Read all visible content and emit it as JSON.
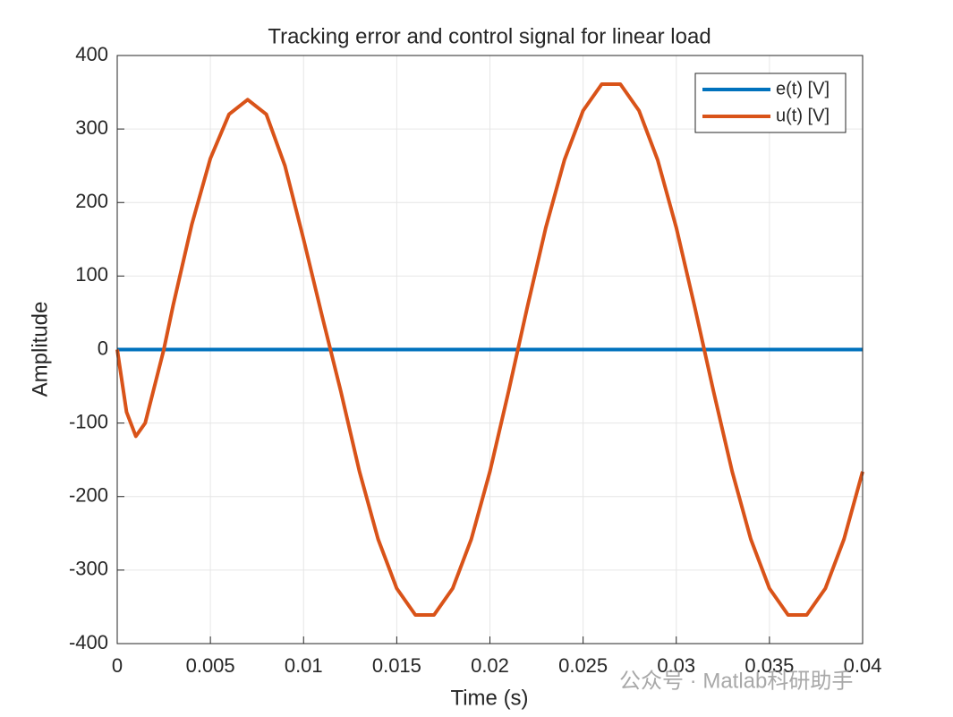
{
  "chart_data": {
    "type": "line",
    "title": "Tracking error and control signal for linear load",
    "xlabel": "Time (s)",
    "ylabel": "Amplitude",
    "x": [
      0,
      0.0005,
      0.001,
      0.0015,
      0.002,
      0.0025,
      0.003,
      0.004,
      0.005,
      0.006,
      0.007,
      0.008,
      0.009,
      0.01,
      0.011,
      0.012,
      0.013,
      0.014,
      0.015,
      0.016,
      0.017,
      0.018,
      0.019,
      0.02,
      0.021,
      0.022,
      0.023,
      0.024,
      0.025,
      0.026,
      0.027,
      0.028,
      0.029,
      0.03,
      0.031,
      0.032,
      0.033,
      0.034,
      0.035,
      0.036,
      0.037,
      0.038,
      0.039,
      0.04
    ],
    "series": [
      {
        "name": "e(t) [V]",
        "color": "#0072bd",
        "values": [
          0,
          0,
          0,
          0,
          0,
          0,
          0,
          0,
          0,
          0,
          0,
          0,
          0,
          0,
          0,
          0,
          0,
          0,
          0,
          0,
          0,
          0,
          0,
          0,
          0,
          0,
          0,
          0,
          0,
          0,
          0,
          0,
          0,
          0,
          0,
          0,
          0,
          0,
          0,
          0,
          0,
          0,
          0,
          0
        ]
      },
      {
        "name": "u(t) [V]",
        "color": "#d95319",
        "values": [
          0,
          -85,
          -118,
          -100,
          -50,
          0,
          60,
          170,
          260,
          320,
          340,
          320,
          250,
          150,
          45,
          -57,
          -166,
          -258,
          -325,
          -361,
          -361,
          -325,
          -258,
          -166,
          -57,
          57,
          166,
          258,
          325,
          361,
          361,
          325,
          258,
          166,
          57,
          -57,
          -166,
          -258,
          -325,
          -361,
          -361,
          -325,
          -258,
          -166
        ]
      }
    ],
    "xlim": [
      0,
      0.04
    ],
    "xticks": [
      0,
      0.005,
      0.01,
      0.015,
      0.02,
      0.025,
      0.03,
      0.035,
      0.04
    ],
    "ylim": [
      -400,
      400
    ],
    "yticks": [
      -400,
      -300,
      -200,
      -100,
      0,
      100,
      200,
      300,
      400
    ],
    "grid": true,
    "legend": "northeast",
    "watermark": "公众号 · Matlab科研助手"
  }
}
